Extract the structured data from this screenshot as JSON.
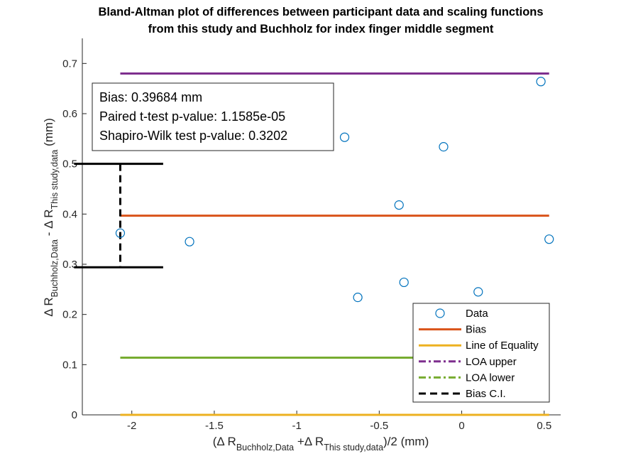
{
  "chart_data": {
    "type": "scatter",
    "title_lines": [
      "Bland-Altman plot of differences between participant data and scaling functions",
      "from this study and Buchholz for index finger middle segment"
    ],
    "xlabel": {
      "open": "(Δ R",
      "sub1": "Buchholz,Data",
      "mid": " +Δ R",
      "sub2": "This study,data",
      "close": ")/2 (mm)"
    },
    "ylabel": {
      "p1": "Δ R",
      "sub1": "Buchholz,Data",
      "p2": " - Δ R",
      "sub2": "This study,data",
      "p3": " (mm)"
    },
    "xlim": [
      -2.3,
      0.6
    ],
    "ylim": [
      0,
      0.75
    ],
    "x_ticks": [
      -2,
      -1.5,
      -1,
      -0.5,
      0,
      0.5
    ],
    "x_tick_labels": [
      "-2",
      "-1.5",
      "-1",
      "-0.5",
      "0",
      "0.5"
    ],
    "y_ticks": [
      0,
      0.1,
      0.2,
      0.3,
      0.4,
      0.5,
      0.6,
      0.7
    ],
    "y_tick_labels": [
      "0",
      "0.1",
      "0.2",
      "0.3",
      "0.4",
      "0.5",
      "0.6",
      "0.7"
    ],
    "grid": false,
    "points": [
      {
        "x": -2.07,
        "y": 0.362
      },
      {
        "x": -1.65,
        "y": 0.345
      },
      {
        "x": -0.71,
        "y": 0.553
      },
      {
        "x": -0.63,
        "y": 0.234
      },
      {
        "x": -0.38,
        "y": 0.418
      },
      {
        "x": -0.35,
        "y": 0.264
      },
      {
        "x": -0.11,
        "y": 0.534
      },
      {
        "x": 0.1,
        "y": 0.245
      },
      {
        "x": 0.48,
        "y": 0.664
      },
      {
        "x": 0.53,
        "y": 0.35
      }
    ],
    "lines": {
      "x_range": [
        -2.07,
        0.53
      ],
      "bias": 0.39684,
      "equality": 0,
      "loa_upper": 0.68,
      "loa_lower": 0.114
    },
    "bias_ci": {
      "x": -2.07,
      "low": 0.294,
      "high": 0.5,
      "cap_x_range": [
        -2.35,
        -1.81
      ]
    },
    "colors": {
      "data": "#0072BD",
      "bias": "#D95319",
      "equality": "#EDB120",
      "loa_upper": "#7E2F8E",
      "loa_lower": "#77AC30",
      "bias_ci": "#000000"
    },
    "stats_box": [
      "Bias: 0.39684 mm",
      "Paired t-test p-value: 1.1585e-05",
      "Shapiro-Wilk test p-value: 0.3202"
    ],
    "legend": {
      "position": "bottom-right",
      "entries": [
        {
          "label": "Data",
          "style": "marker",
          "color_key": "data"
        },
        {
          "label": "Bias",
          "style": "solid",
          "color_key": "bias"
        },
        {
          "label": "Line of Equality",
          "style": "solid",
          "color_key": "equality"
        },
        {
          "label": "LOA upper",
          "style": "dashdot",
          "color_key": "loa_upper"
        },
        {
          "label": "LOA lower",
          "style": "dashdot",
          "color_key": "loa_lower"
        },
        {
          "label": "Bias C.I.",
          "style": "dashed",
          "color_key": "bias_ci"
        }
      ]
    }
  }
}
